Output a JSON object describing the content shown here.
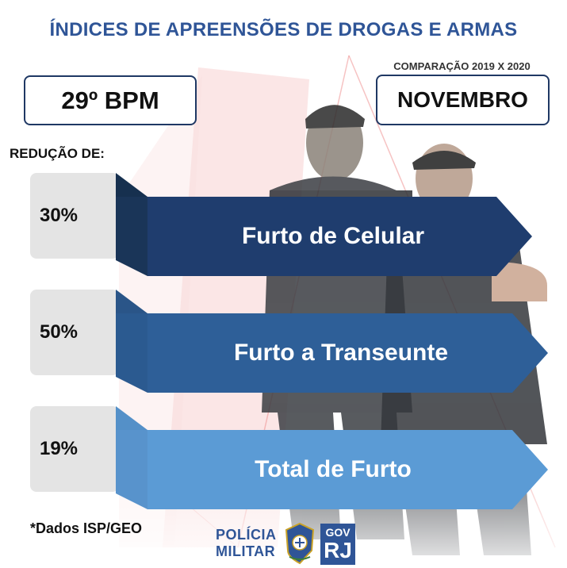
{
  "header": {
    "title": "ÍNDICES DE APREENSÕES DE DROGAS E ARMAS",
    "unit": "29º BPM",
    "comparison": "COMPARAÇÃO 2019 X 2020",
    "month": "NOVEMBRO"
  },
  "reduction_label": "REDUÇÃO DE:",
  "items": [
    {
      "percent": "30%",
      "label": "Furto de Celular",
      "color": "#1f3d6e"
    },
    {
      "percent": "50%",
      "label": "Furto a Transeunte",
      "color": "#2e5f98"
    },
    {
      "percent": "19%",
      "label": "Total de Furto",
      "color": "#5b9bd5"
    }
  ],
  "footer": {
    "note": "*Dados ISP/GEO",
    "pm_line1": "POLÍCIA",
    "pm_line2": "MILITAR",
    "gov_line1": "GOV",
    "gov_line2": "RJ"
  },
  "icons": {
    "background": "police-officers-photo",
    "emblem": "pm-crest-icon"
  }
}
